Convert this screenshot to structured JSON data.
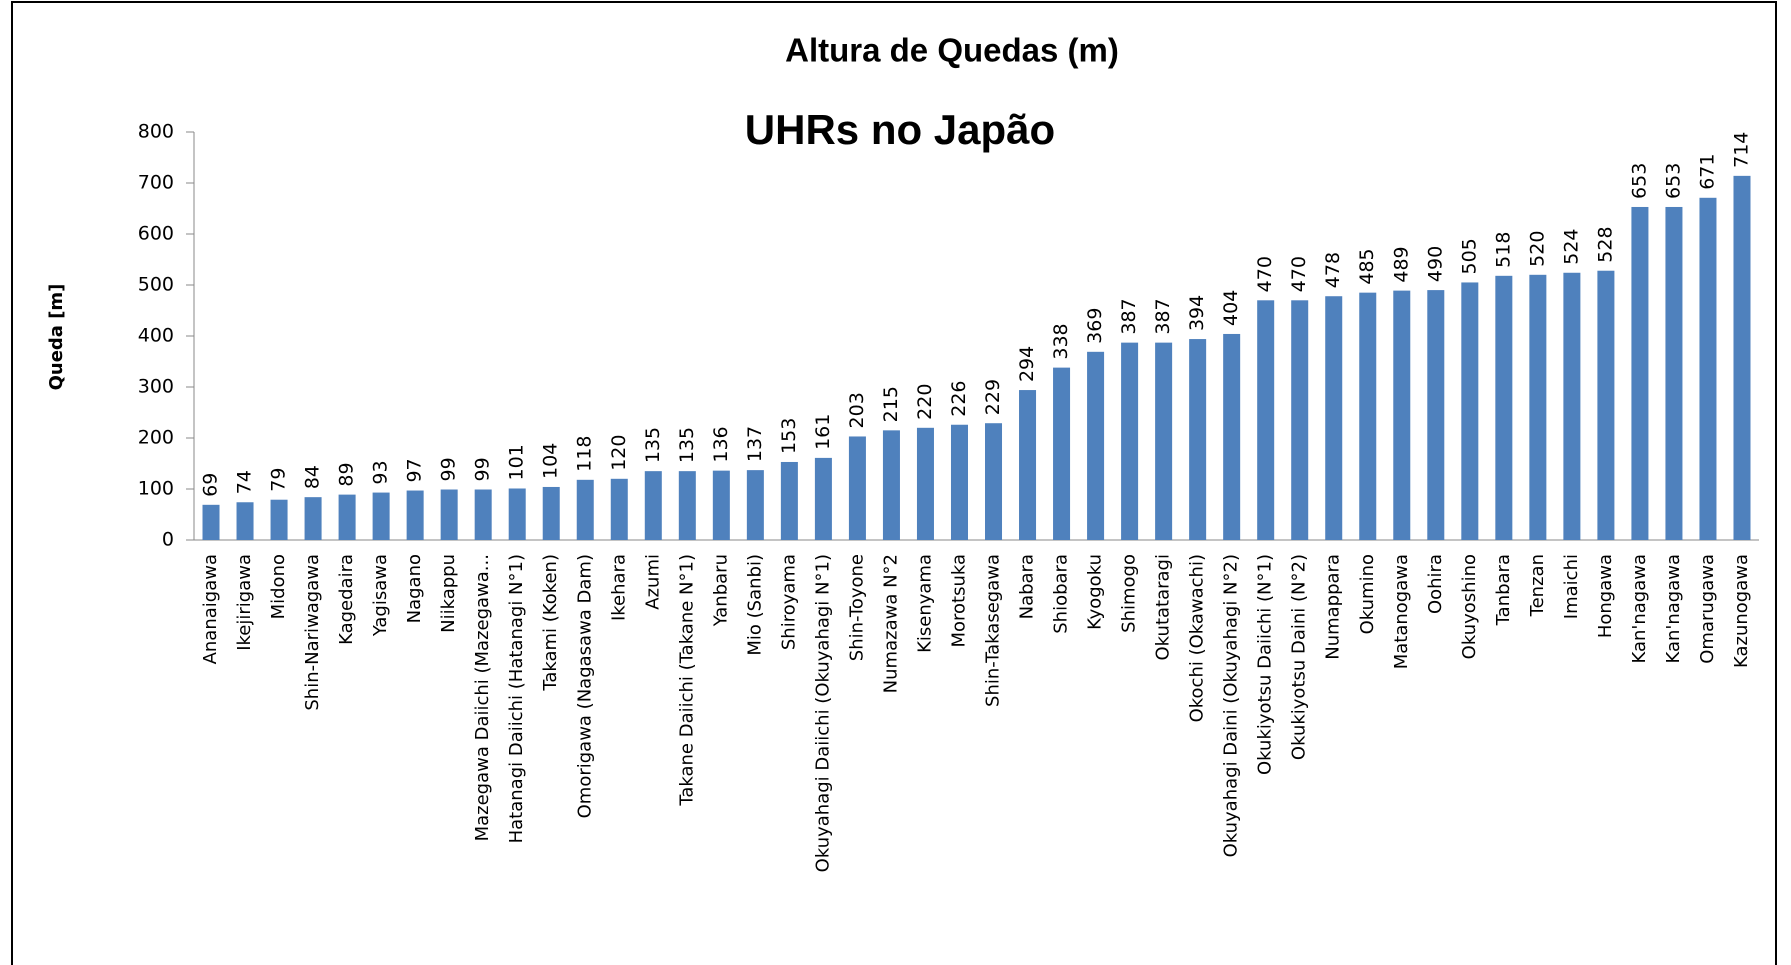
{
  "chart_data": {
    "type": "bar",
    "title": "Altura de Quedas (m)",
    "subtitle": "UHRs no Japão",
    "y_label": "Queda [m]",
    "categories": [
      "Ananaigawa",
      "Ikejirigawa",
      "Midono",
      "Shin-Nariwagawa",
      "Kagedaira",
      "Yagisawa",
      "Nagano",
      "Niikappu",
      "Mazegawa Daiichi (Mazegawa...",
      "Hatanagi Daiichi (Hatanagi N°1)",
      "Takami (Koken)",
      "Omorigawa (Nagasawa Dam)",
      "Ikehara",
      "Azumi",
      "Takane Daiichi (Takane N°1)",
      "Yanbaru",
      "Mio (Sanbi)",
      "Shiroyama",
      "Okuyahagi Daiichi (Okuyahagi N°1)",
      "Shin-Toyone",
      "Numazawa N°2",
      "Kisenyama",
      "Morotsuka",
      "Shin-Takasegawa",
      "Nabara",
      "Shiobara",
      "Kyogoku",
      "Shimogo",
      "Okutataragi",
      "Okochi (Okawachi)",
      "Okuyahagi Daini (Okuyahagi N°2)",
      "Okukiyotsu Daiichi (N°1)",
      "Okukiyotsu Daini (N°2)",
      "Numappara",
      "Okumino",
      "Matanogawa",
      "Oohira",
      "Okuyoshino",
      "Tanbara",
      "Tenzan",
      "Imaichi",
      "Hongawa",
      "Kan'nagawa",
      "Kan'nagawa",
      "Omarugawa",
      "Kazunogawa"
    ],
    "values": [
      69,
      74,
      79,
      84,
      89,
      93,
      97,
      99,
      99,
      101,
      104,
      118,
      120,
      135,
      135,
      136,
      137,
      153,
      161,
      203,
      215,
      220,
      226,
      229,
      294,
      338,
      369,
      387,
      387,
      394,
      404,
      470,
      470,
      478,
      485,
      489,
      490,
      505,
      518,
      520,
      524,
      528,
      653,
      653,
      671,
      714
    ],
    "color": "#4f81bd",
    "ylim": [
      0,
      800
    ],
    "yticks": [
      0,
      100,
      200,
      300,
      400,
      500,
      600,
      700,
      800
    ],
    "grid": false
  }
}
